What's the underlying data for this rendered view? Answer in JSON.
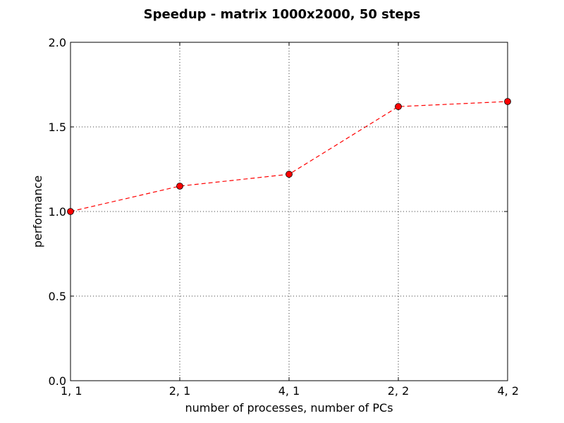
{
  "chart_data": {
    "type": "line",
    "title": "Speedup - matrix 1000x2000, 50 steps",
    "xlabel": "number of processes, number of PCs",
    "ylabel": "performance",
    "categories": [
      "1, 1",
      "2, 1",
      "4, 1",
      "2, 2",
      "4, 2"
    ],
    "series": [
      {
        "values": [
          1.0,
          1.15,
          1.22,
          1.62,
          1.65
        ],
        "color": "#ff0000",
        "marker_color": "#ff0000",
        "line_style": "dashed",
        "marker": "circle"
      }
    ],
    "ylim": [
      0.0,
      2.0
    ],
    "yticks": [
      0.0,
      0.5,
      1.0,
      1.5,
      2.0
    ],
    "ytick_labels": [
      "0.0",
      "0.5",
      "1.0",
      "1.5",
      "2.0"
    ],
    "grid": true,
    "grid_style": "dotted"
  }
}
